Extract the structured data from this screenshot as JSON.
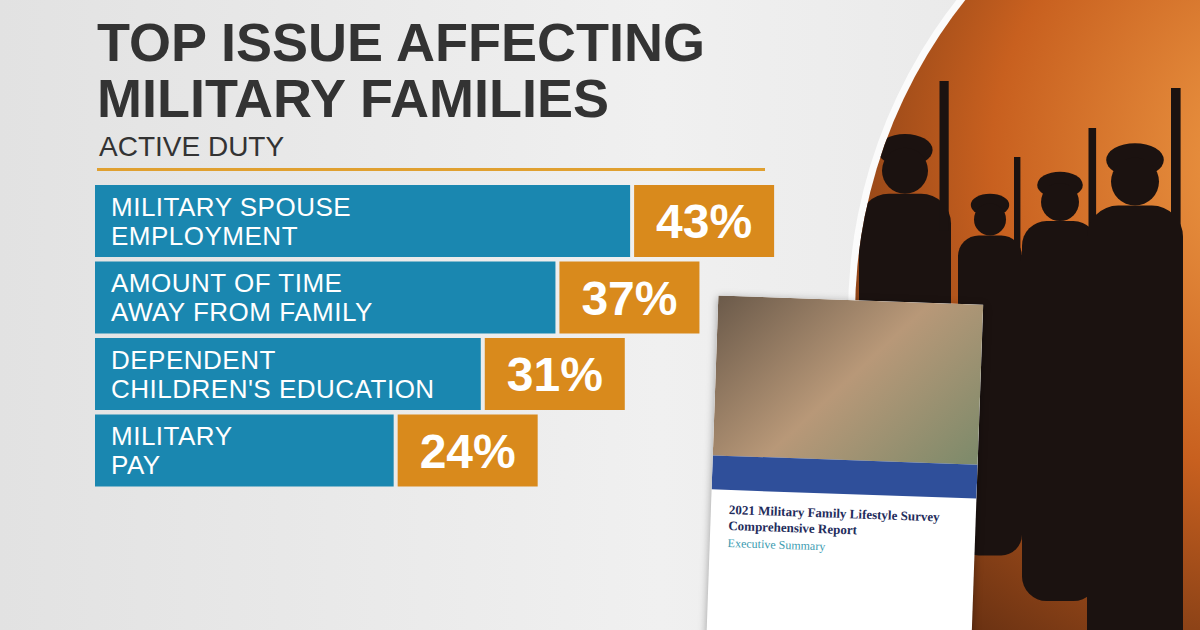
{
  "chart_data": {
    "type": "bar",
    "orientation": "horizontal",
    "title": "TOP ISSUE AFFECTING MILITARY FAMILIES",
    "subtitle": "ACTIVE DUTY",
    "categories": [
      "MILITARY SPOUSE EMPLOYMENT",
      "AMOUNT OF TIME AWAY FROM FAMILY",
      "DEPENDENT CHILDREN'S EDUCATION",
      "MILITARY PAY"
    ],
    "values": [
      43,
      37,
      31,
      24
    ],
    "value_labels": [
      "43%",
      "37%",
      "31%",
      "24%"
    ],
    "color": "#1a87b0",
    "xlim": [
      0,
      45
    ],
    "data_labels": true,
    "tick_labels": false,
    "annotations": [
      "2021 Military Family Lifestyle Survey Comprehensive Report",
      "Executive Summary"
    ]
  }
}
